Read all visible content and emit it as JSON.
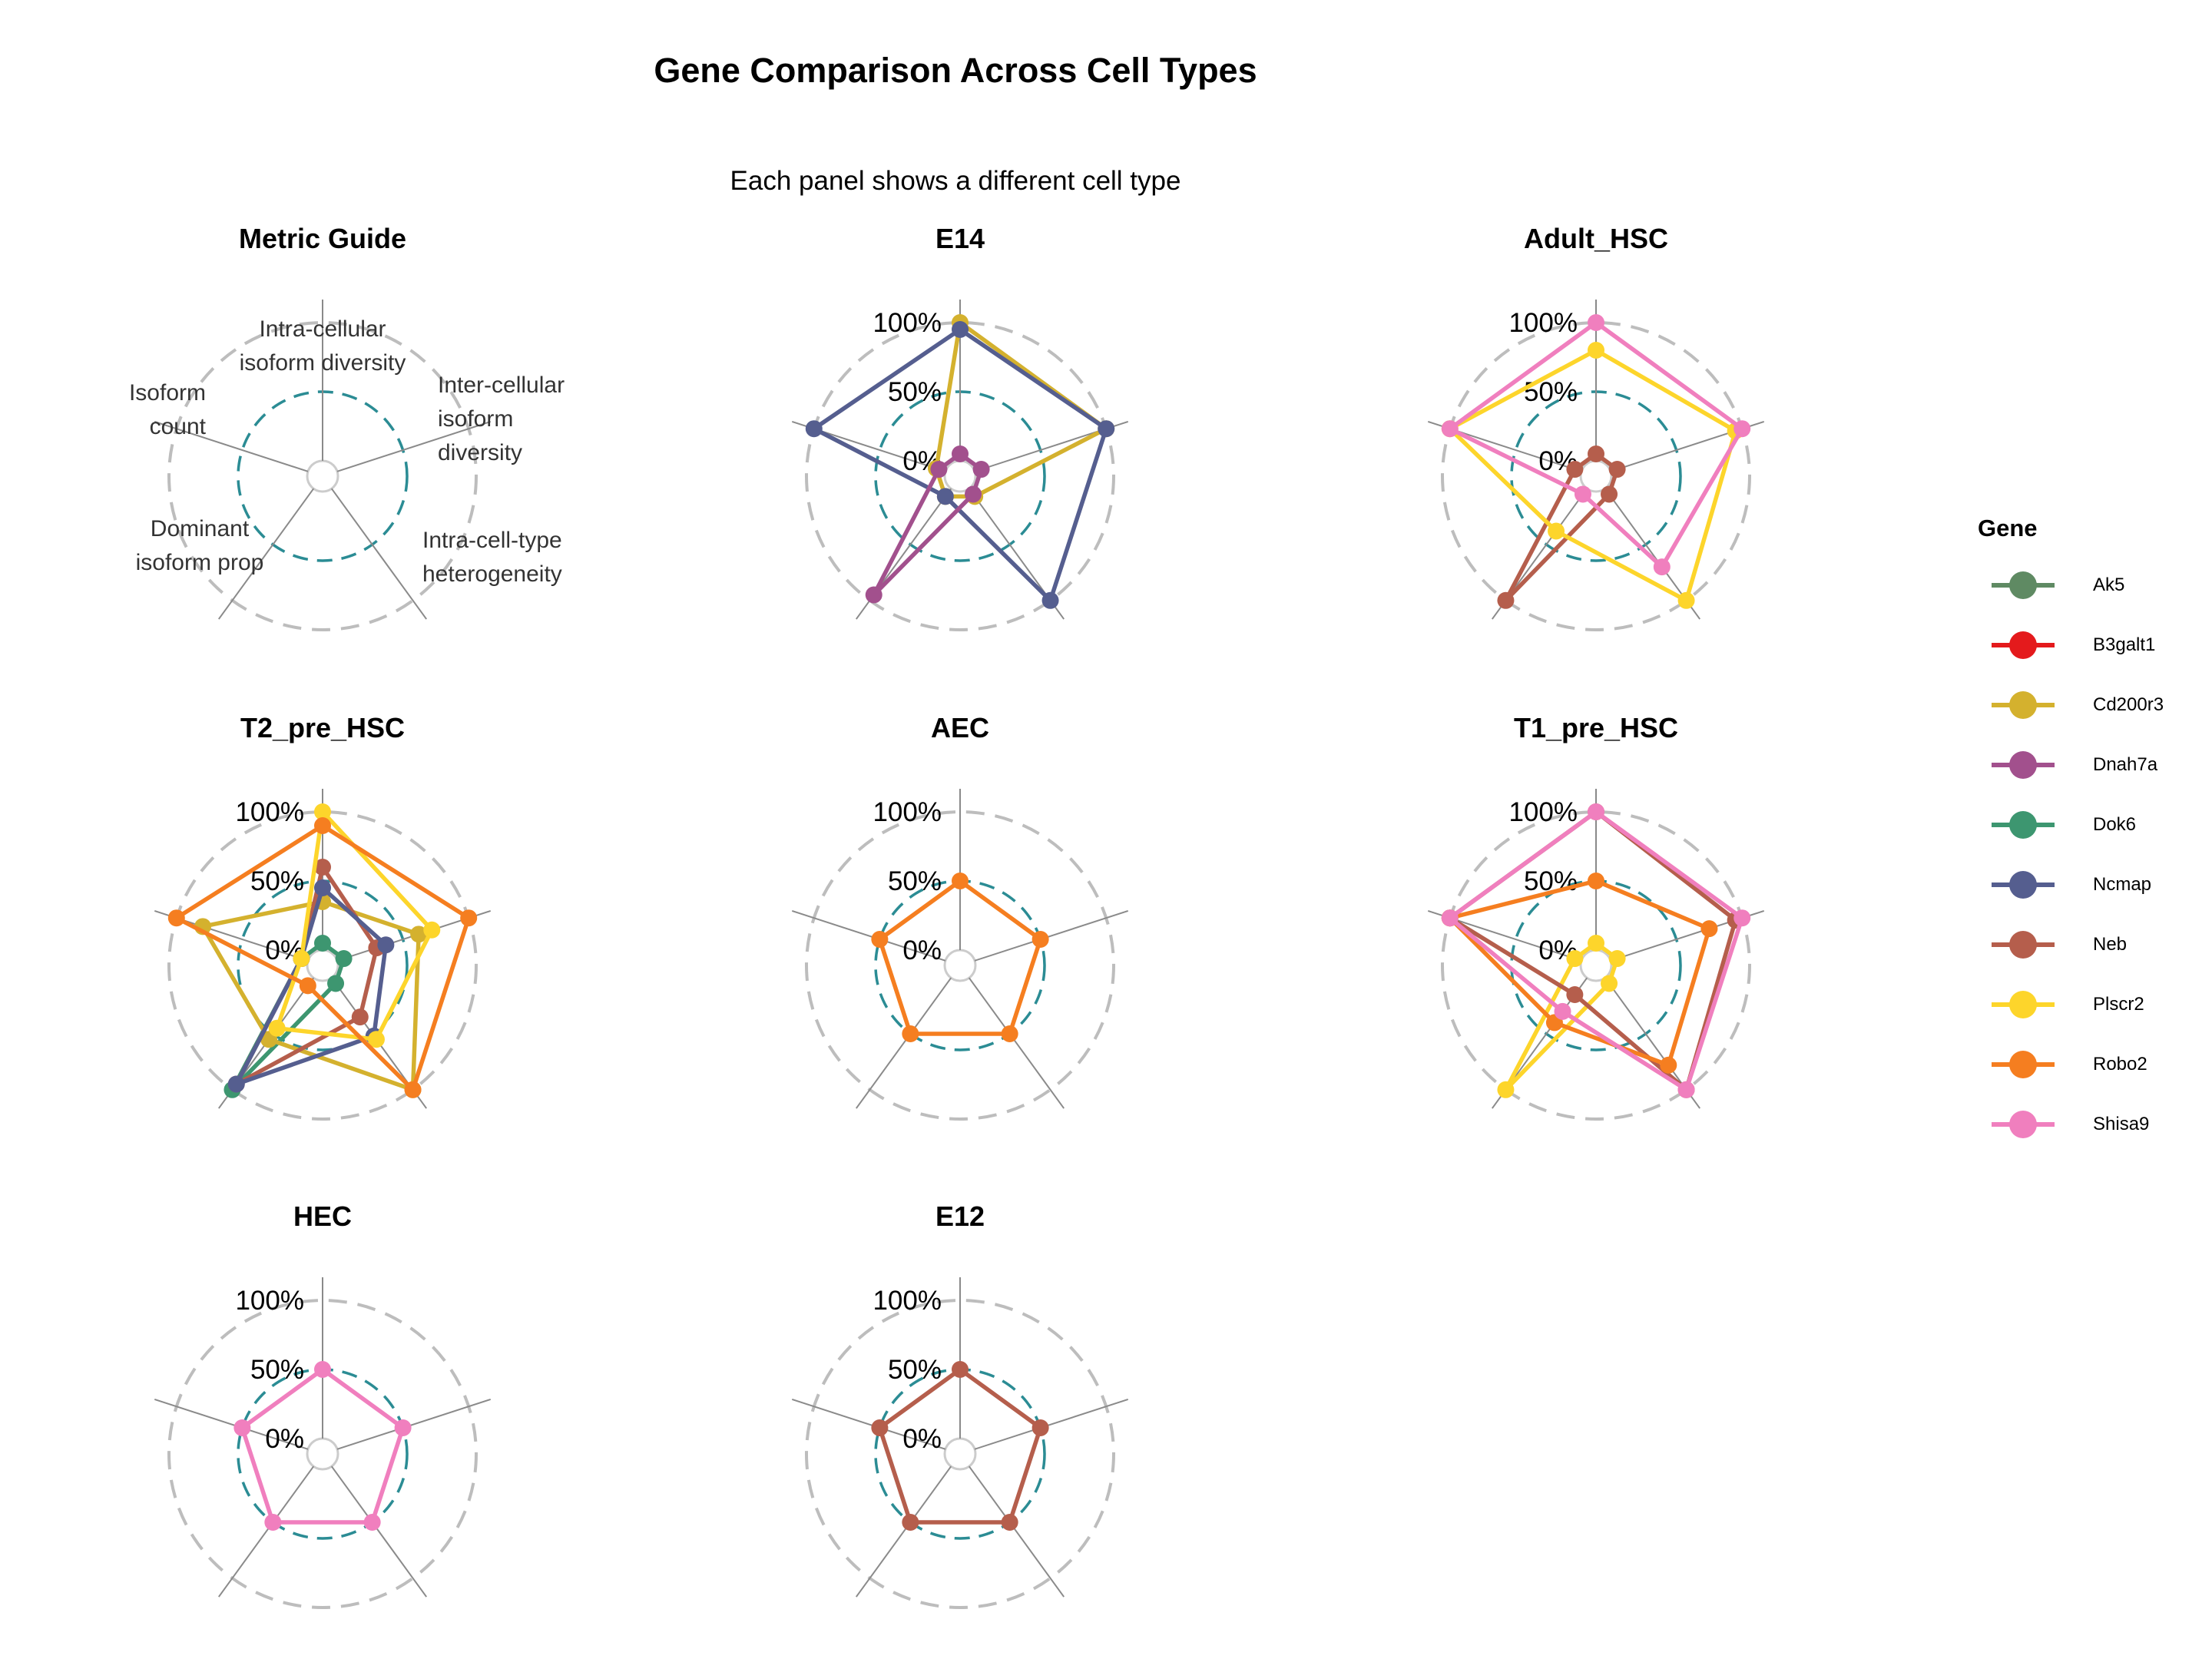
{
  "title": "Gene Comparison Across Cell Types",
  "subtitle": "Each panel shows a different cell type",
  "chart_data": {
    "type": "radar",
    "r_ticks": [
      "0%",
      "50%",
      "100%"
    ],
    "r_range": [
      0,
      100
    ],
    "axes": [
      "Intra-cellular isoform diversity",
      "Inter-cellular isoform diversity",
      "Intra-cell-type heterogeneity",
      "Dominant isoform prop",
      "Isoform count"
    ],
    "legend": {
      "title": "Gene",
      "position": "right",
      "items": [
        {
          "name": "Ak5",
          "color": "#5f8a63"
        },
        {
          "name": "B3galt1",
          "color": "#e41a1c"
        },
        {
          "name": "Cd200r3",
          "color": "#d4b12e"
        },
        {
          "name": "Dnah7a",
          "color": "#a2508d"
        },
        {
          "name": "Dok6",
          "color": "#3d9670"
        },
        {
          "name": "Ncmap",
          "color": "#555e8f"
        },
        {
          "name": "Neb",
          "color": "#b55e4c"
        },
        {
          "name": "Plscr2",
          "color": "#fdd52b"
        },
        {
          "name": "Robo2",
          "color": "#f57e20"
        },
        {
          "name": "Shisa9",
          "color": "#f07fbe"
        }
      ]
    },
    "guide": {
      "title": "Metric Guide",
      "labels": [
        [
          "Intra-cellular",
          "isoform diversity"
        ],
        [
          "Inter-cellular",
          "isoform",
          "diversity"
        ],
        [
          "Intra-cell-type",
          "heterogeneity"
        ],
        [
          "Dominant",
          "isoform prop"
        ],
        [
          "Isoform",
          "count"
        ]
      ]
    },
    "panels": [
      {
        "title": "E14",
        "series": [
          {
            "name": "Cd200r3",
            "values": [
              100,
              100,
              7,
              7,
              7
            ]
          },
          {
            "name": "Ncmap",
            "values": [
              95,
              100,
              100,
              7,
              100
            ]
          },
          {
            "name": "Dnah7a",
            "values": [
              5,
              5,
              5,
              95,
              5
            ]
          }
        ]
      },
      {
        "title": "Adult_HSC",
        "series": [
          {
            "name": "Neb",
            "values": [
              5,
              5,
              5,
              100,
              5
            ]
          },
          {
            "name": "Plscr2",
            "values": [
              80,
              95,
              100,
              38,
              100
            ]
          },
          {
            "name": "Shisa9",
            "values": [
              100,
              100,
              70,
              5,
              100
            ]
          }
        ]
      },
      {
        "title": "T2_pre_HSC",
        "series": [
          {
            "name": "Dok6",
            "values": [
              5,
              5,
              5,
              100,
              5
            ]
          },
          {
            "name": "Cd200r3",
            "values": [
              35,
              62,
              100,
              55,
              80
            ]
          },
          {
            "name": "Neb",
            "values": [
              60,
              30,
              35,
              95,
              5
            ]
          },
          {
            "name": "Ncmap",
            "values": [
              45,
              37,
              52,
              95,
              5
            ]
          },
          {
            "name": "Plscr2",
            "values": [
              100,
              72,
              55,
              45,
              5
            ]
          },
          {
            "name": "Robo2",
            "values": [
              90,
              100,
              100,
              7,
              100
            ]
          }
        ]
      },
      {
        "title": "AEC",
        "series": [
          {
            "name": "Robo2",
            "values": [
              50,
              50,
              50,
              50,
              50
            ]
          }
        ]
      },
      {
        "title": "T1_pre_HSC",
        "series": [
          {
            "name": "Plscr2",
            "values": [
              5,
              5,
              5,
              100,
              5
            ]
          },
          {
            "name": "Neb",
            "values": [
              100,
              95,
              100,
              15,
              100
            ]
          },
          {
            "name": "Robo2",
            "values": [
              50,
              75,
              78,
              40,
              100
            ]
          },
          {
            "name": "Shisa9",
            "values": [
              100,
              100,
              100,
              30,
              100
            ]
          }
        ]
      },
      {
        "title": "HEC",
        "series": [
          {
            "name": "Shisa9",
            "values": [
              50,
              50,
              50,
              50,
              50
            ]
          }
        ]
      },
      {
        "title": "E12",
        "series": [
          {
            "name": "Neb",
            "values": [
              50,
              50,
              50,
              50,
              50
            ]
          }
        ]
      }
    ]
  }
}
